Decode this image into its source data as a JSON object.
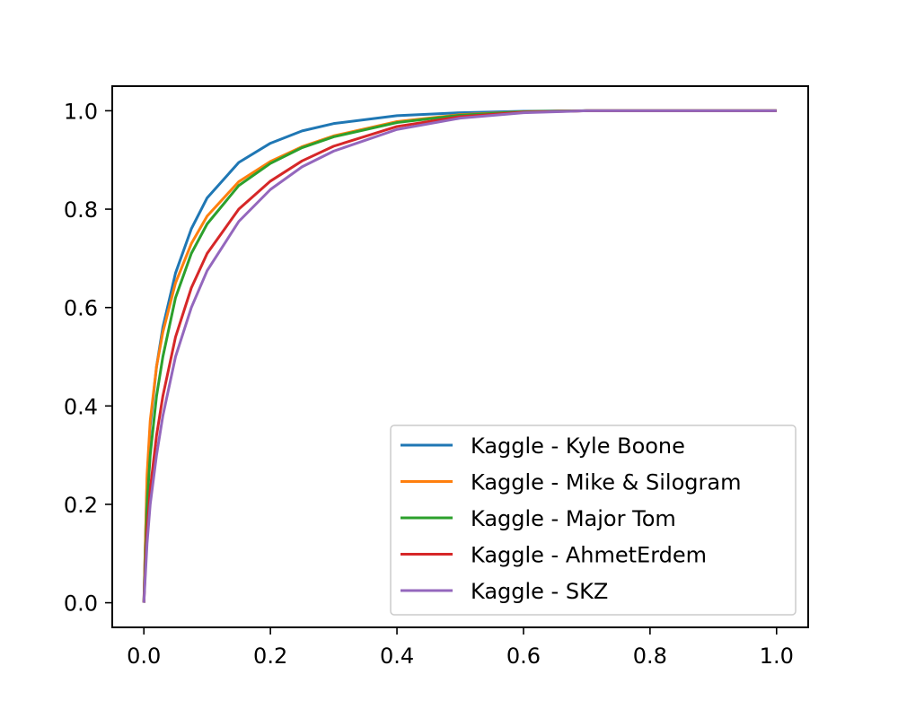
{
  "chart_data": {
    "type": "line",
    "title": "",
    "xlabel": "",
    "ylabel": "",
    "xlim": [
      -0.05,
      1.05
    ],
    "ylim": [
      -0.05,
      1.05
    ],
    "x_ticks": [
      0.0,
      0.2,
      0.4,
      0.6,
      0.8,
      1.0
    ],
    "x_tick_labels": [
      "0.0",
      "0.2",
      "0.4",
      "0.6",
      "0.8",
      "1.0"
    ],
    "y_ticks": [
      0.0,
      0.2,
      0.4,
      0.6,
      0.8,
      1.0
    ],
    "y_tick_labels": [
      "0.0",
      "0.2",
      "0.4",
      "0.6",
      "0.8",
      "1.0"
    ],
    "grid": false,
    "legend_position": "lower-right",
    "x": [
      0.0,
      0.005,
      0.01,
      0.02,
      0.03,
      0.05,
      0.075,
      0.1,
      0.15,
      0.2,
      0.25,
      0.3,
      0.4,
      0.5,
      0.6,
      0.7,
      0.8,
      0.9,
      1.0
    ],
    "series": [
      {
        "name": "Kaggle - Kyle Boone",
        "color": "#1f77b4",
        "values": [
          0.0,
          0.25,
          0.36,
          0.48,
          0.56,
          0.67,
          0.76,
          0.823,
          0.895,
          0.934,
          0.959,
          0.974,
          0.99,
          0.996,
          0.999,
          1.0,
          1.0,
          1.0,
          1.0
        ]
      },
      {
        "name": "Kaggle - Mike & Silogram",
        "color": "#ff7f0e",
        "values": [
          0.0,
          0.26,
          0.37,
          0.48,
          0.55,
          0.65,
          0.73,
          0.786,
          0.856,
          0.897,
          0.927,
          0.949,
          0.978,
          0.992,
          0.998,
          1.0,
          1.0,
          1.0,
          1.0
        ]
      },
      {
        "name": "Kaggle - Major Tom",
        "color": "#2ca02c",
        "values": [
          0.0,
          0.2,
          0.3,
          0.42,
          0.5,
          0.62,
          0.71,
          0.77,
          0.848,
          0.893,
          0.925,
          0.947,
          0.976,
          0.991,
          0.998,
          1.0,
          1.0,
          1.0,
          1.0
        ]
      },
      {
        "name": "Kaggle - AhmetErdem",
        "color": "#d62728",
        "values": [
          0.0,
          0.15,
          0.23,
          0.34,
          0.42,
          0.54,
          0.64,
          0.71,
          0.8,
          0.857,
          0.898,
          0.928,
          0.968,
          0.988,
          0.997,
          1.0,
          1.0,
          1.0,
          1.0
        ]
      },
      {
        "name": "Kaggle - SKZ",
        "color": "#9467bd",
        "values": [
          0.0,
          0.12,
          0.2,
          0.3,
          0.38,
          0.5,
          0.6,
          0.675,
          0.775,
          0.84,
          0.886,
          0.918,
          0.962,
          0.985,
          0.996,
          1.0,
          1.0,
          1.0,
          1.0
        ]
      }
    ]
  }
}
